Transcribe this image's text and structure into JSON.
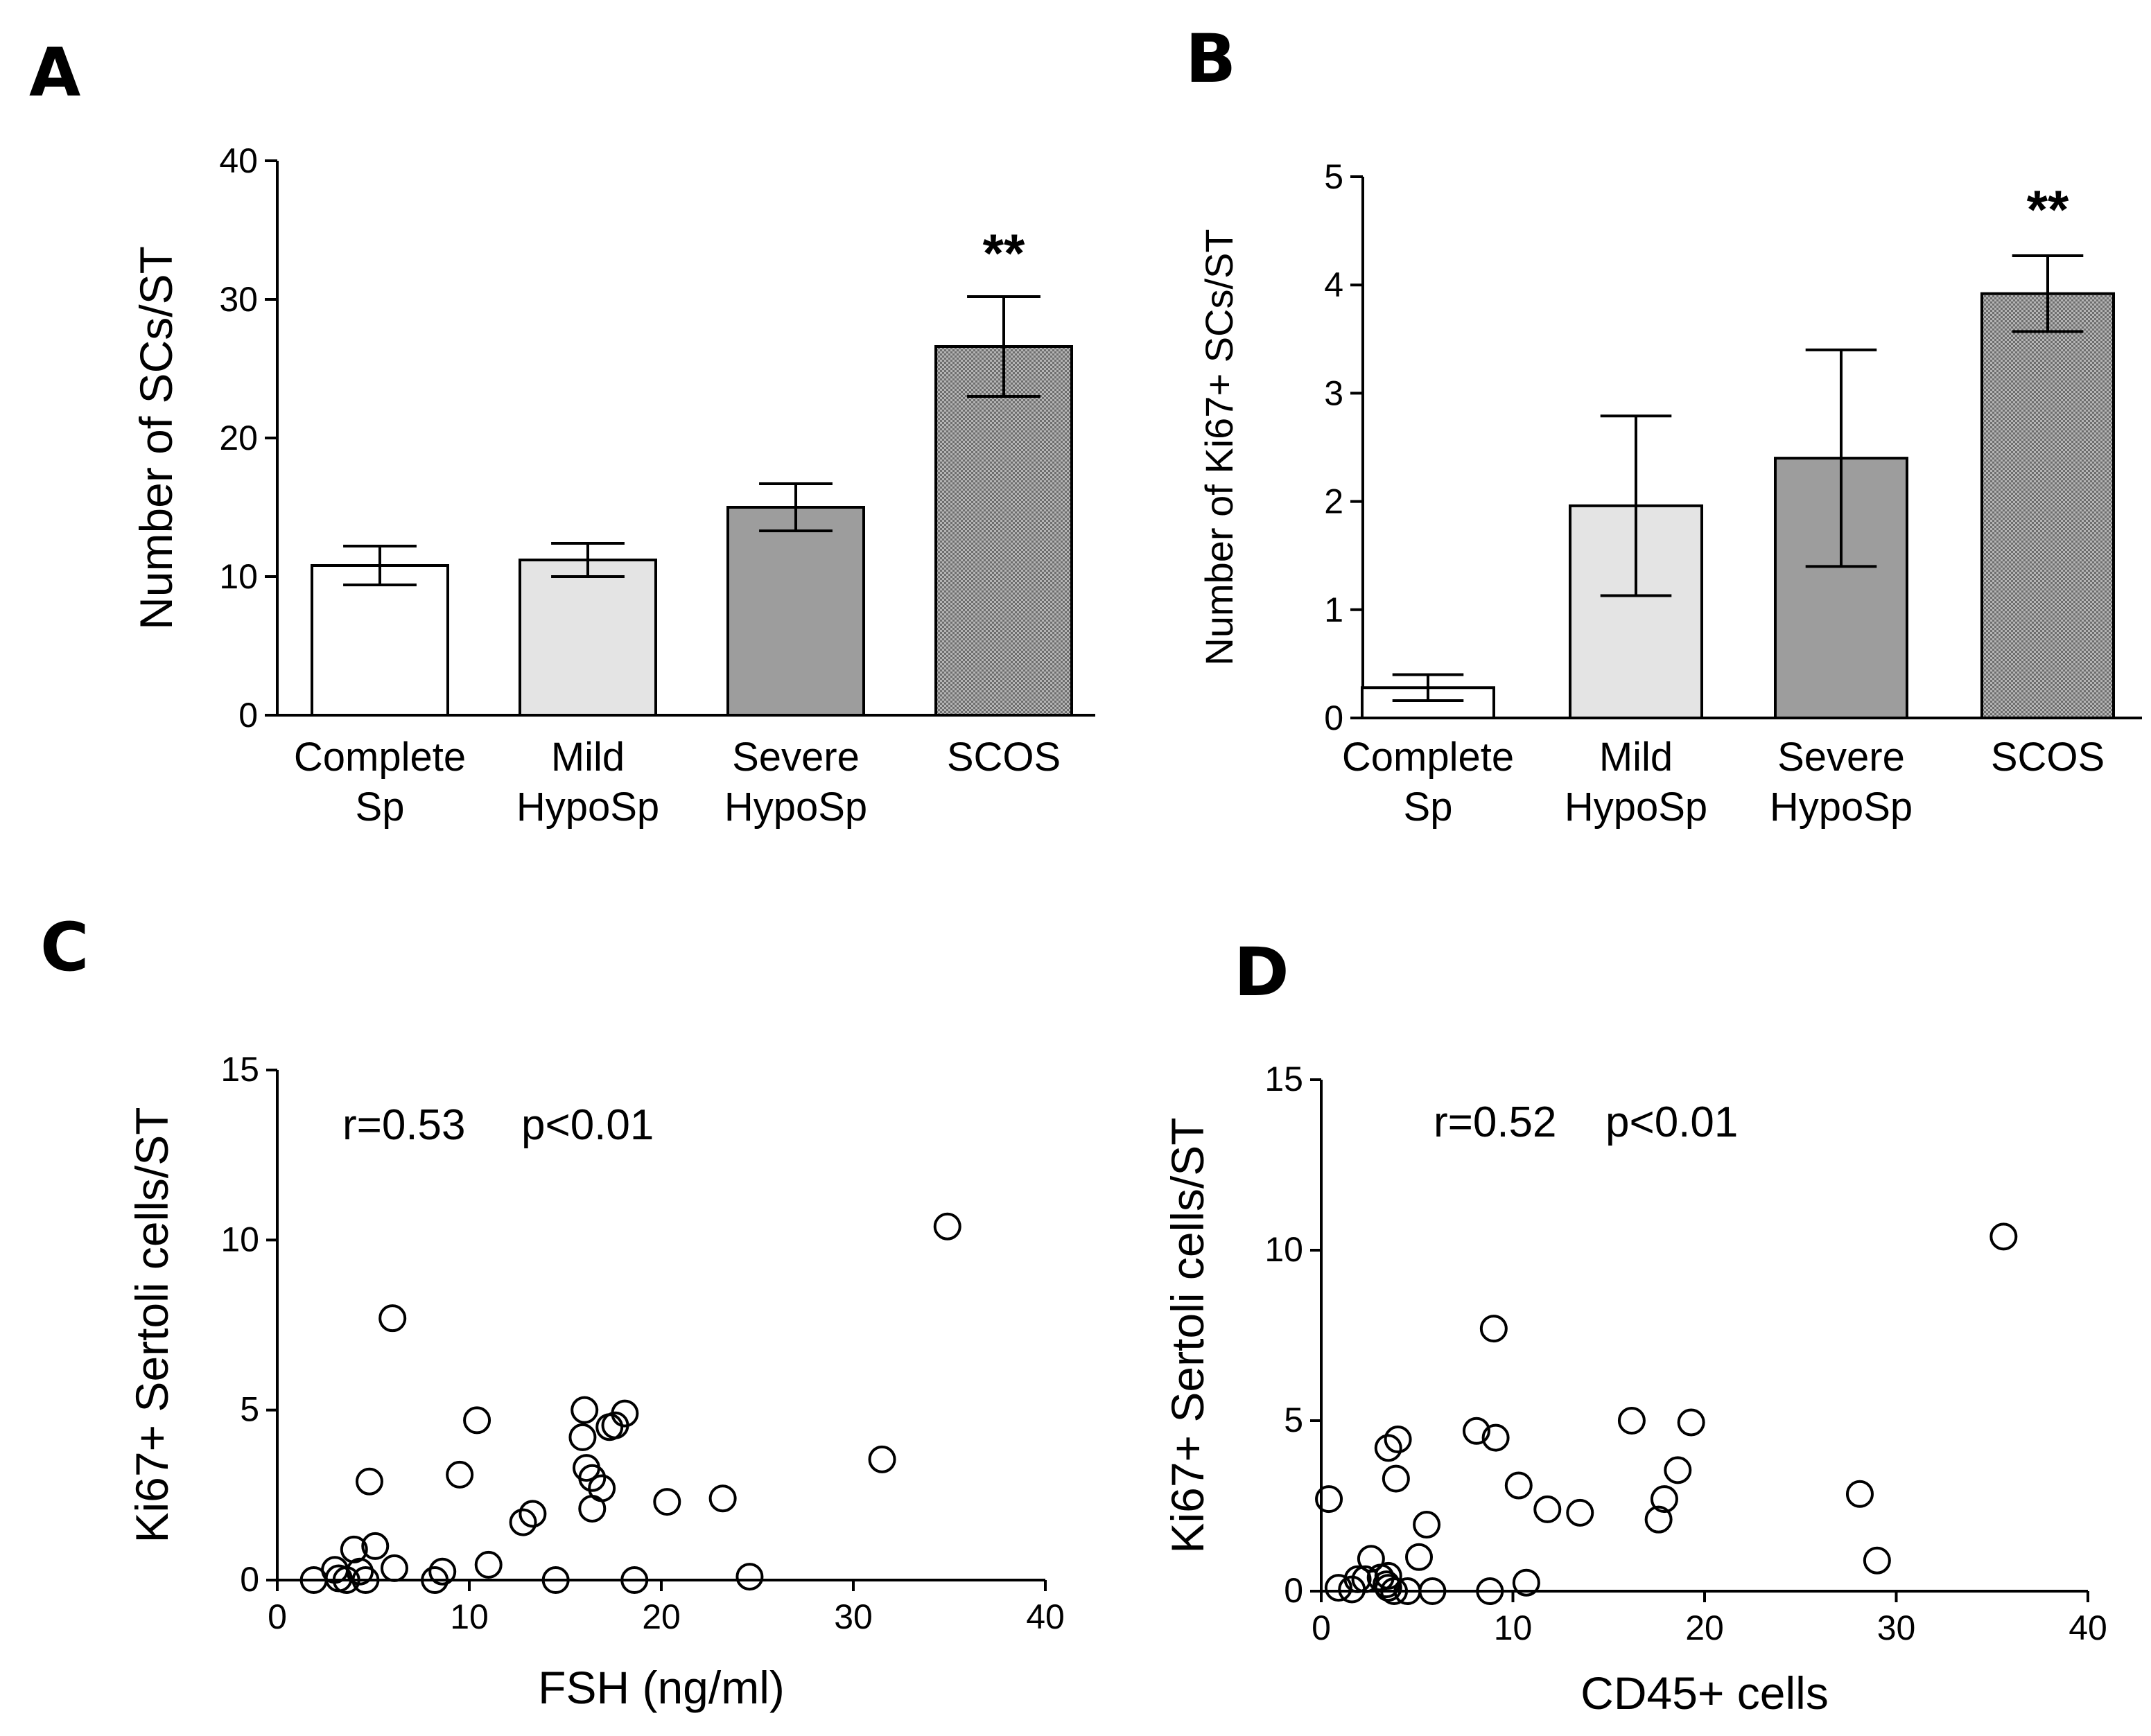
{
  "chart_data": [
    {
      "panel": "A",
      "type": "bar",
      "categories": [
        [
          "Complete",
          "Sp"
        ],
        [
          "Mild",
          "HypoSp"
        ],
        [
          "Severe",
          "HypoSp"
        ],
        [
          "SCOS"
        ]
      ],
      "values": [
        10.8,
        11.2,
        15.0,
        26.6
      ],
      "error": [
        1.4,
        1.2,
        1.7,
        3.6
      ],
      "fills": [
        "#ffffff",
        "#e4e4e4",
        "#9d9d9d",
        "#b0b0b0"
      ],
      "hatched": [
        false,
        false,
        false,
        true
      ],
      "significance": [
        null,
        null,
        null,
        "**"
      ],
      "ylabel": "Number of SCs/ST",
      "ylim": [
        0,
        40
      ],
      "yticks": [
        "0",
        "10",
        "20",
        "30",
        "40"
      ]
    },
    {
      "panel": "B",
      "type": "bar",
      "categories": [
        [
          "Complete",
          "Sp"
        ],
        [
          "Mild",
          "HypoSp"
        ],
        [
          "Severe",
          "HypoSp"
        ],
        [
          "SCOS"
        ]
      ],
      "values": [
        0.28,
        1.96,
        2.4,
        3.92
      ],
      "error": [
        0.12,
        0.83,
        1.0,
        0.35
      ],
      "fills": [
        "#ffffff",
        "#e4e4e4",
        "#9d9d9d",
        "#b0b0b0"
      ],
      "hatched": [
        false,
        false,
        false,
        true
      ],
      "significance": [
        null,
        null,
        null,
        "**"
      ],
      "ylabel": "Number of Ki67+ SCs/ST",
      "ylim": [
        0,
        5
      ],
      "yticks": [
        "0",
        "1",
        "2",
        "3",
        "4",
        "5"
      ]
    },
    {
      "panel": "C",
      "type": "scatter",
      "xlabel": "FSH (ng/ml)",
      "ylabel": "Ki67+ Sertoli cells/ST",
      "xlim": [
        0,
        40
      ],
      "ylim": [
        0,
        15
      ],
      "xticks": [
        "0",
        "10",
        "20",
        "30",
        "40"
      ],
      "yticks": [
        "0",
        "5",
        "10",
        "15"
      ],
      "annotation_r": "r=0.53",
      "annotation_p": "p<0.01",
      "points": [
        [
          1.9,
          0.0
        ],
        [
          3.0,
          0.3
        ],
        [
          3.2,
          0.05
        ],
        [
          3.6,
          0.0
        ],
        [
          4.0,
          0.9
        ],
        [
          4.3,
          0.25
        ],
        [
          4.6,
          0.0
        ],
        [
          4.8,
          2.9
        ],
        [
          5.1,
          1.0
        ],
        [
          6.0,
          7.7
        ],
        [
          6.1,
          0.35
        ],
        [
          8.2,
          0.0
        ],
        [
          8.6,
          0.25
        ],
        [
          9.5,
          3.1
        ],
        [
          10.4,
          4.7
        ],
        [
          11.0,
          0.45
        ],
        [
          12.8,
          1.7
        ],
        [
          13.3,
          1.95
        ],
        [
          14.5,
          0.0
        ],
        [
          15.9,
          4.2
        ],
        [
          16.0,
          5.0
        ],
        [
          16.1,
          3.3
        ],
        [
          16.4,
          2.1
        ],
        [
          16.4,
          3.0
        ],
        [
          16.9,
          2.7
        ],
        [
          17.3,
          4.5
        ],
        [
          17.6,
          4.55
        ],
        [
          18.1,
          4.9
        ],
        [
          18.6,
          0.0
        ],
        [
          20.3,
          2.3
        ],
        [
          23.2,
          2.4
        ],
        [
          24.6,
          0.1
        ],
        [
          31.5,
          3.55
        ],
        [
          34.9,
          10.4
        ]
      ]
    },
    {
      "panel": "D",
      "type": "scatter",
      "xlabel": "CD45+ cells",
      "ylabel": "Ki67+ Sertoli cells/ST",
      "xlim": [
        0,
        40
      ],
      "ylim": [
        0,
        15
      ],
      "xticks": [
        "0",
        "10",
        "20",
        "30",
        "40"
      ],
      "yticks": [
        "0",
        "5",
        "10",
        "15"
      ],
      "annotation_r": "r=0.52",
      "annotation_p": "p<0.01",
      "points": [
        [
          0.4,
          2.7
        ],
        [
          0.9,
          0.1
        ],
        [
          1.6,
          0.05
        ],
        [
          1.9,
          0.35
        ],
        [
          2.3,
          0.35
        ],
        [
          2.6,
          0.95
        ],
        [
          3.1,
          0.4
        ],
        [
          3.4,
          0.2
        ],
        [
          3.5,
          0.45
        ],
        [
          3.5,
          0.1
        ],
        [
          3.5,
          4.2
        ],
        [
          3.8,
          0.0
        ],
        [
          3.9,
          3.3
        ],
        [
          4.0,
          4.45
        ],
        [
          4.5,
          0.0
        ],
        [
          5.1,
          1.0
        ],
        [
          5.5,
          1.95
        ],
        [
          5.8,
          0.0
        ],
        [
          8.1,
          4.7
        ],
        [
          8.8,
          0.0
        ],
        [
          9.0,
          7.7
        ],
        [
          9.1,
          4.5
        ],
        [
          10.3,
          3.1
        ],
        [
          10.7,
          0.25
        ],
        [
          11.8,
          2.4
        ],
        [
          13.5,
          2.3
        ],
        [
          16.2,
          5.0
        ],
        [
          17.6,
          2.1
        ],
        [
          17.9,
          2.7
        ],
        [
          18.6,
          3.55
        ],
        [
          19.3,
          4.95
        ],
        [
          28.1,
          2.85
        ],
        [
          29.0,
          0.9
        ],
        [
          35.6,
          10.4
        ]
      ]
    }
  ],
  "panel_labels": {
    "a": "A",
    "b": "B",
    "c": "C",
    "d": "D"
  }
}
